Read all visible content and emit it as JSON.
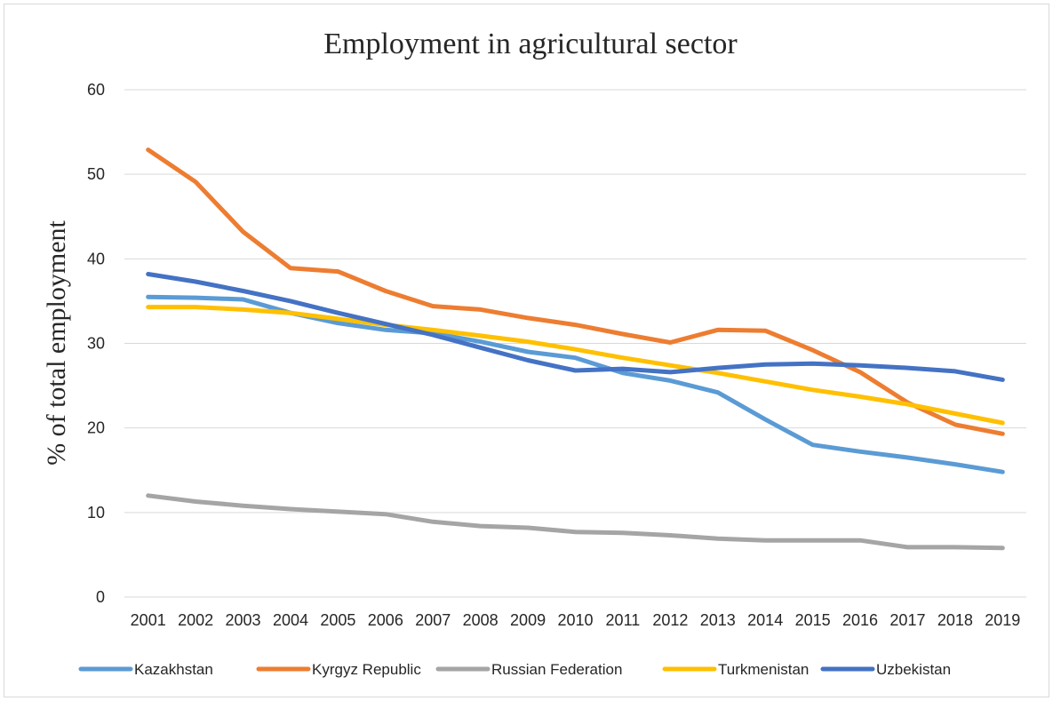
{
  "chart_data": {
    "type": "line",
    "title": "Employment in agricultural sector",
    "xlabel": "",
    "ylabel": "% of total employment",
    "ylim": [
      0,
      60
    ],
    "yticks": [
      "0",
      "10",
      "20",
      "30",
      "40",
      "50",
      "60"
    ],
    "categories": [
      "2001",
      "2002",
      "2003",
      "2004",
      "2005",
      "2006",
      "2007",
      "2008",
      "2009",
      "2010",
      "2011",
      "2012",
      "2013",
      "2014",
      "2015",
      "2016",
      "2017",
      "2018",
      "2019"
    ],
    "grid": true,
    "legend_position": "bottom",
    "series": [
      {
        "name": "Kazakhstan",
        "color": "#5B9BD5",
        "values": [
          35.5,
          35.4,
          35.2,
          33.6,
          32.4,
          31.6,
          31.2,
          30.2,
          29.0,
          28.3,
          26.5,
          25.6,
          24.2,
          21.0,
          18.0,
          17.2,
          16.5,
          15.7,
          14.8
        ]
      },
      {
        "name": "Kyrgyz Republic",
        "color": "#ED7D31",
        "values": [
          52.9,
          49.1,
          43.2,
          38.9,
          38.5,
          36.2,
          34.4,
          34.0,
          33.0,
          32.2,
          31.1,
          30.1,
          31.6,
          31.5,
          29.2,
          26.6,
          23.0,
          20.4,
          19.3
        ]
      },
      {
        "name": "Russian Federation",
        "color": "#A5A5A5",
        "values": [
          12.0,
          11.3,
          10.8,
          10.4,
          10.1,
          9.8,
          8.9,
          8.4,
          8.2,
          7.7,
          7.6,
          7.3,
          6.9,
          6.7,
          6.7,
          6.7,
          5.9,
          5.9,
          5.8
        ]
      },
      {
        "name": "Turkmenistan",
        "color": "#FFC000",
        "values": [
          34.3,
          34.3,
          34.0,
          33.6,
          32.9,
          32.2,
          31.6,
          30.9,
          30.2,
          29.3,
          28.3,
          27.4,
          26.5,
          25.5,
          24.5,
          23.7,
          22.8,
          21.7,
          20.6
        ]
      },
      {
        "name": "Uzbekistan",
        "color": "#4472C4",
        "values": [
          38.2,
          37.3,
          36.2,
          35.0,
          33.6,
          32.3,
          31.0,
          29.5,
          28.0,
          26.8,
          27.0,
          26.6,
          27.1,
          27.5,
          27.6,
          27.4,
          27.1,
          26.7,
          25.7
        ]
      }
    ]
  }
}
